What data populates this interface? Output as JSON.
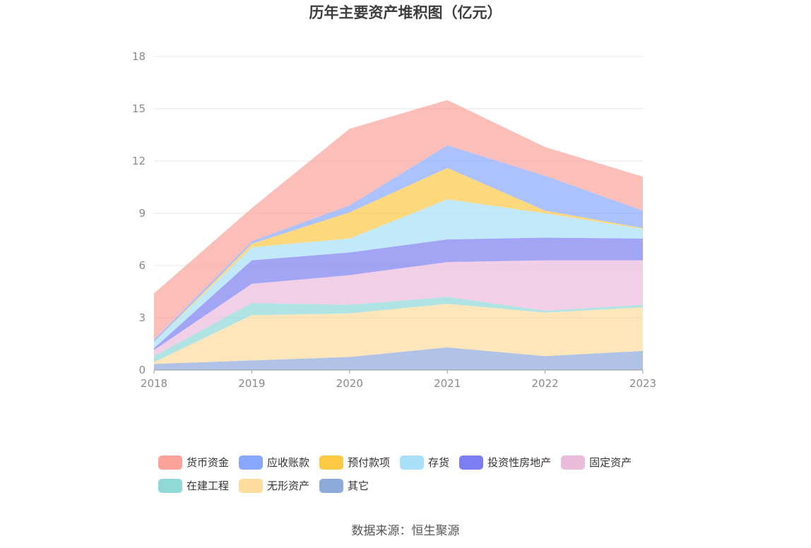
{
  "chart_data": {
    "type": "area",
    "stacked": true,
    "title": "历年主要资产堆积图（亿元）",
    "xlabel": "",
    "ylabel": "",
    "x": [
      "2018",
      "2019",
      "2020",
      "2021",
      "2022",
      "2023"
    ],
    "yticks": [
      "0",
      "3",
      "6",
      "9",
      "12",
      "15",
      "18"
    ],
    "ylim": [
      0,
      18
    ],
    "grid": true,
    "legend_position": "bottom",
    "series": [
      {
        "name": "其它",
        "color": "#8eaadb",
        "values": [
          0.35,
          0.55,
          0.75,
          1.3,
          0.8,
          1.1
        ]
      },
      {
        "name": "无形资产",
        "color": "#fedc9c",
        "values": [
          0.1,
          2.6,
          2.5,
          2.5,
          2.5,
          2.5
        ]
      },
      {
        "name": "在建工程",
        "color": "#8ed8d8",
        "values": [
          0.35,
          0.7,
          0.5,
          0.4,
          0.1,
          0.15
        ]
      },
      {
        "name": "固定资产",
        "color": "#ebbbdc",
        "values": [
          0.35,
          1.1,
          1.7,
          2.0,
          2.9,
          2.55
        ]
      },
      {
        "name": "投资性房地产",
        "color": "#7b7ef0",
        "values": [
          0.1,
          1.35,
          1.3,
          1.3,
          1.3,
          1.25
        ]
      },
      {
        "name": "存货",
        "color": "#a8e0f8",
        "values": [
          0.35,
          0.75,
          0.8,
          2.3,
          1.4,
          0.55
        ]
      },
      {
        "name": "预付款项",
        "color": "#fdc844",
        "values": [
          0.0,
          0.2,
          1.5,
          1.8,
          0.15,
          0.05
        ]
      },
      {
        "name": "应收账款",
        "color": "#87a8fd",
        "values": [
          0.15,
          0.15,
          0.4,
          1.3,
          2.0,
          1.0
        ]
      },
      {
        "name": "货币资金",
        "color": "#fba39a",
        "values": [
          2.65,
          1.9,
          4.4,
          2.6,
          1.65,
          1.95
        ]
      }
    ],
    "legend_order": [
      "货币资金",
      "应收账款",
      "预付款项",
      "存货",
      "投资性房地产",
      "固定资产",
      "在建工程",
      "无形资产",
      "其它"
    ]
  },
  "source": "数据来源：恒生聚源"
}
